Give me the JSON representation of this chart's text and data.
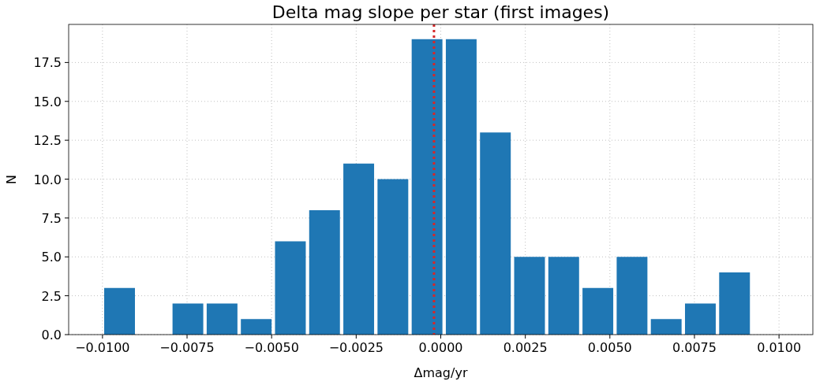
{
  "chart_data": {
    "type": "histogram",
    "title": "Delta mag slope per star (first images)",
    "xlabel": "Δmag/yr",
    "ylabel": "N",
    "bins": [
      -0.01,
      -0.00899,
      -0.00798,
      -0.00697,
      -0.00596,
      -0.00495,
      -0.00394,
      -0.00293,
      -0.00192,
      -0.00091,
      0.0001,
      0.00111,
      0.00212,
      0.00313,
      0.00414,
      0.00515,
      0.00616,
      0.00717,
      0.00818,
      0.00919
    ],
    "values": [
      3,
      0,
      2,
      2,
      1,
      6,
      8,
      11,
      10,
      19,
      19,
      13,
      5,
      5,
      3,
      5,
      1,
      2,
      4
    ],
    "color": "#1f77b4",
    "xlim": [
      -0.011,
      0.011
    ],
    "xticks": [
      {
        "value": -0.01,
        "label": "−0.0100"
      },
      {
        "value": -0.0075,
        "label": "−0.0075"
      },
      {
        "value": -0.005,
        "label": "−0.0050"
      },
      {
        "value": -0.0025,
        "label": "−0.0025"
      },
      {
        "value": 0,
        "label": "0.0000"
      },
      {
        "value": 0.0025,
        "label": "0.0025"
      },
      {
        "value": 0.005,
        "label": "0.0050"
      },
      {
        "value": 0.0075,
        "label": "0.0075"
      },
      {
        "value": 0.01,
        "label": "0.0100"
      }
    ],
    "ylim": [
      0,
      19.95
    ],
    "yticks": [
      {
        "value": 0,
        "label": "0.0"
      },
      {
        "value": 2.5,
        "label": "2.5"
      },
      {
        "value": 5,
        "label": "5.0"
      },
      {
        "value": 7.5,
        "label": "7.5"
      },
      {
        "value": 10,
        "label": "10.0"
      },
      {
        "value": 12.5,
        "label": "12.5"
      },
      {
        "value": 15,
        "label": "15.0"
      },
      {
        "value": 17.5,
        "label": "17.5"
      }
    ],
    "grid": true,
    "ref_lines": [
      {
        "axis": "x",
        "value": -0.0002,
        "color": "#d62728",
        "line_style": "dotted"
      }
    ]
  }
}
